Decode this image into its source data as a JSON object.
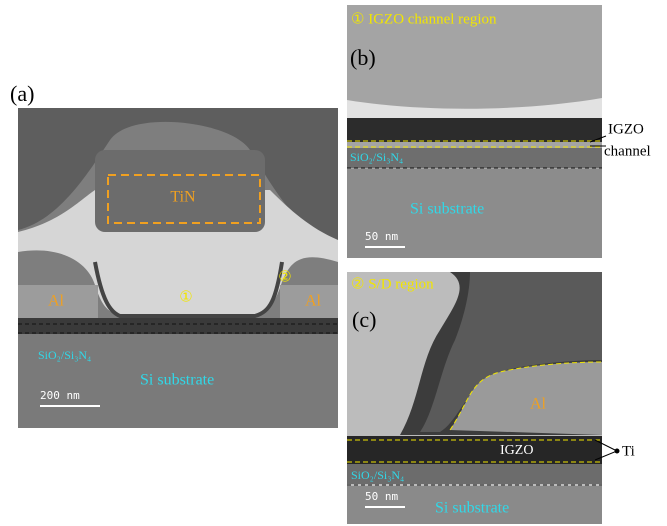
{
  "panels": [
    {
      "label": "(a)",
      "annotations": {
        "gate": "TiN",
        "al_left": "Al",
        "al_right": "Al",
        "region_1": "①",
        "region_2": "②",
        "dielectric": "SiO₂/Si₃N₄",
        "substrate": "Si substrate"
      },
      "scale_bar": "200 nm"
    },
    {
      "label": "(b)",
      "title": "① IGZO channel region",
      "annotations": {
        "igzo": "IGZO",
        "channel": "channel",
        "dielectric": "SiO₂/Si₃N₄",
        "substrate": "Si substrate"
      },
      "scale_bar": "50 nm"
    },
    {
      "label": "(c)",
      "title": "② S/D region",
      "annotations": {
        "al": "Al",
        "igzo": "IGZO",
        "ti": "Ti",
        "dielectric": "SiO₂/Si₃N₄",
        "substrate": "Si substrate"
      },
      "scale_bar": "50 nm"
    }
  ]
}
